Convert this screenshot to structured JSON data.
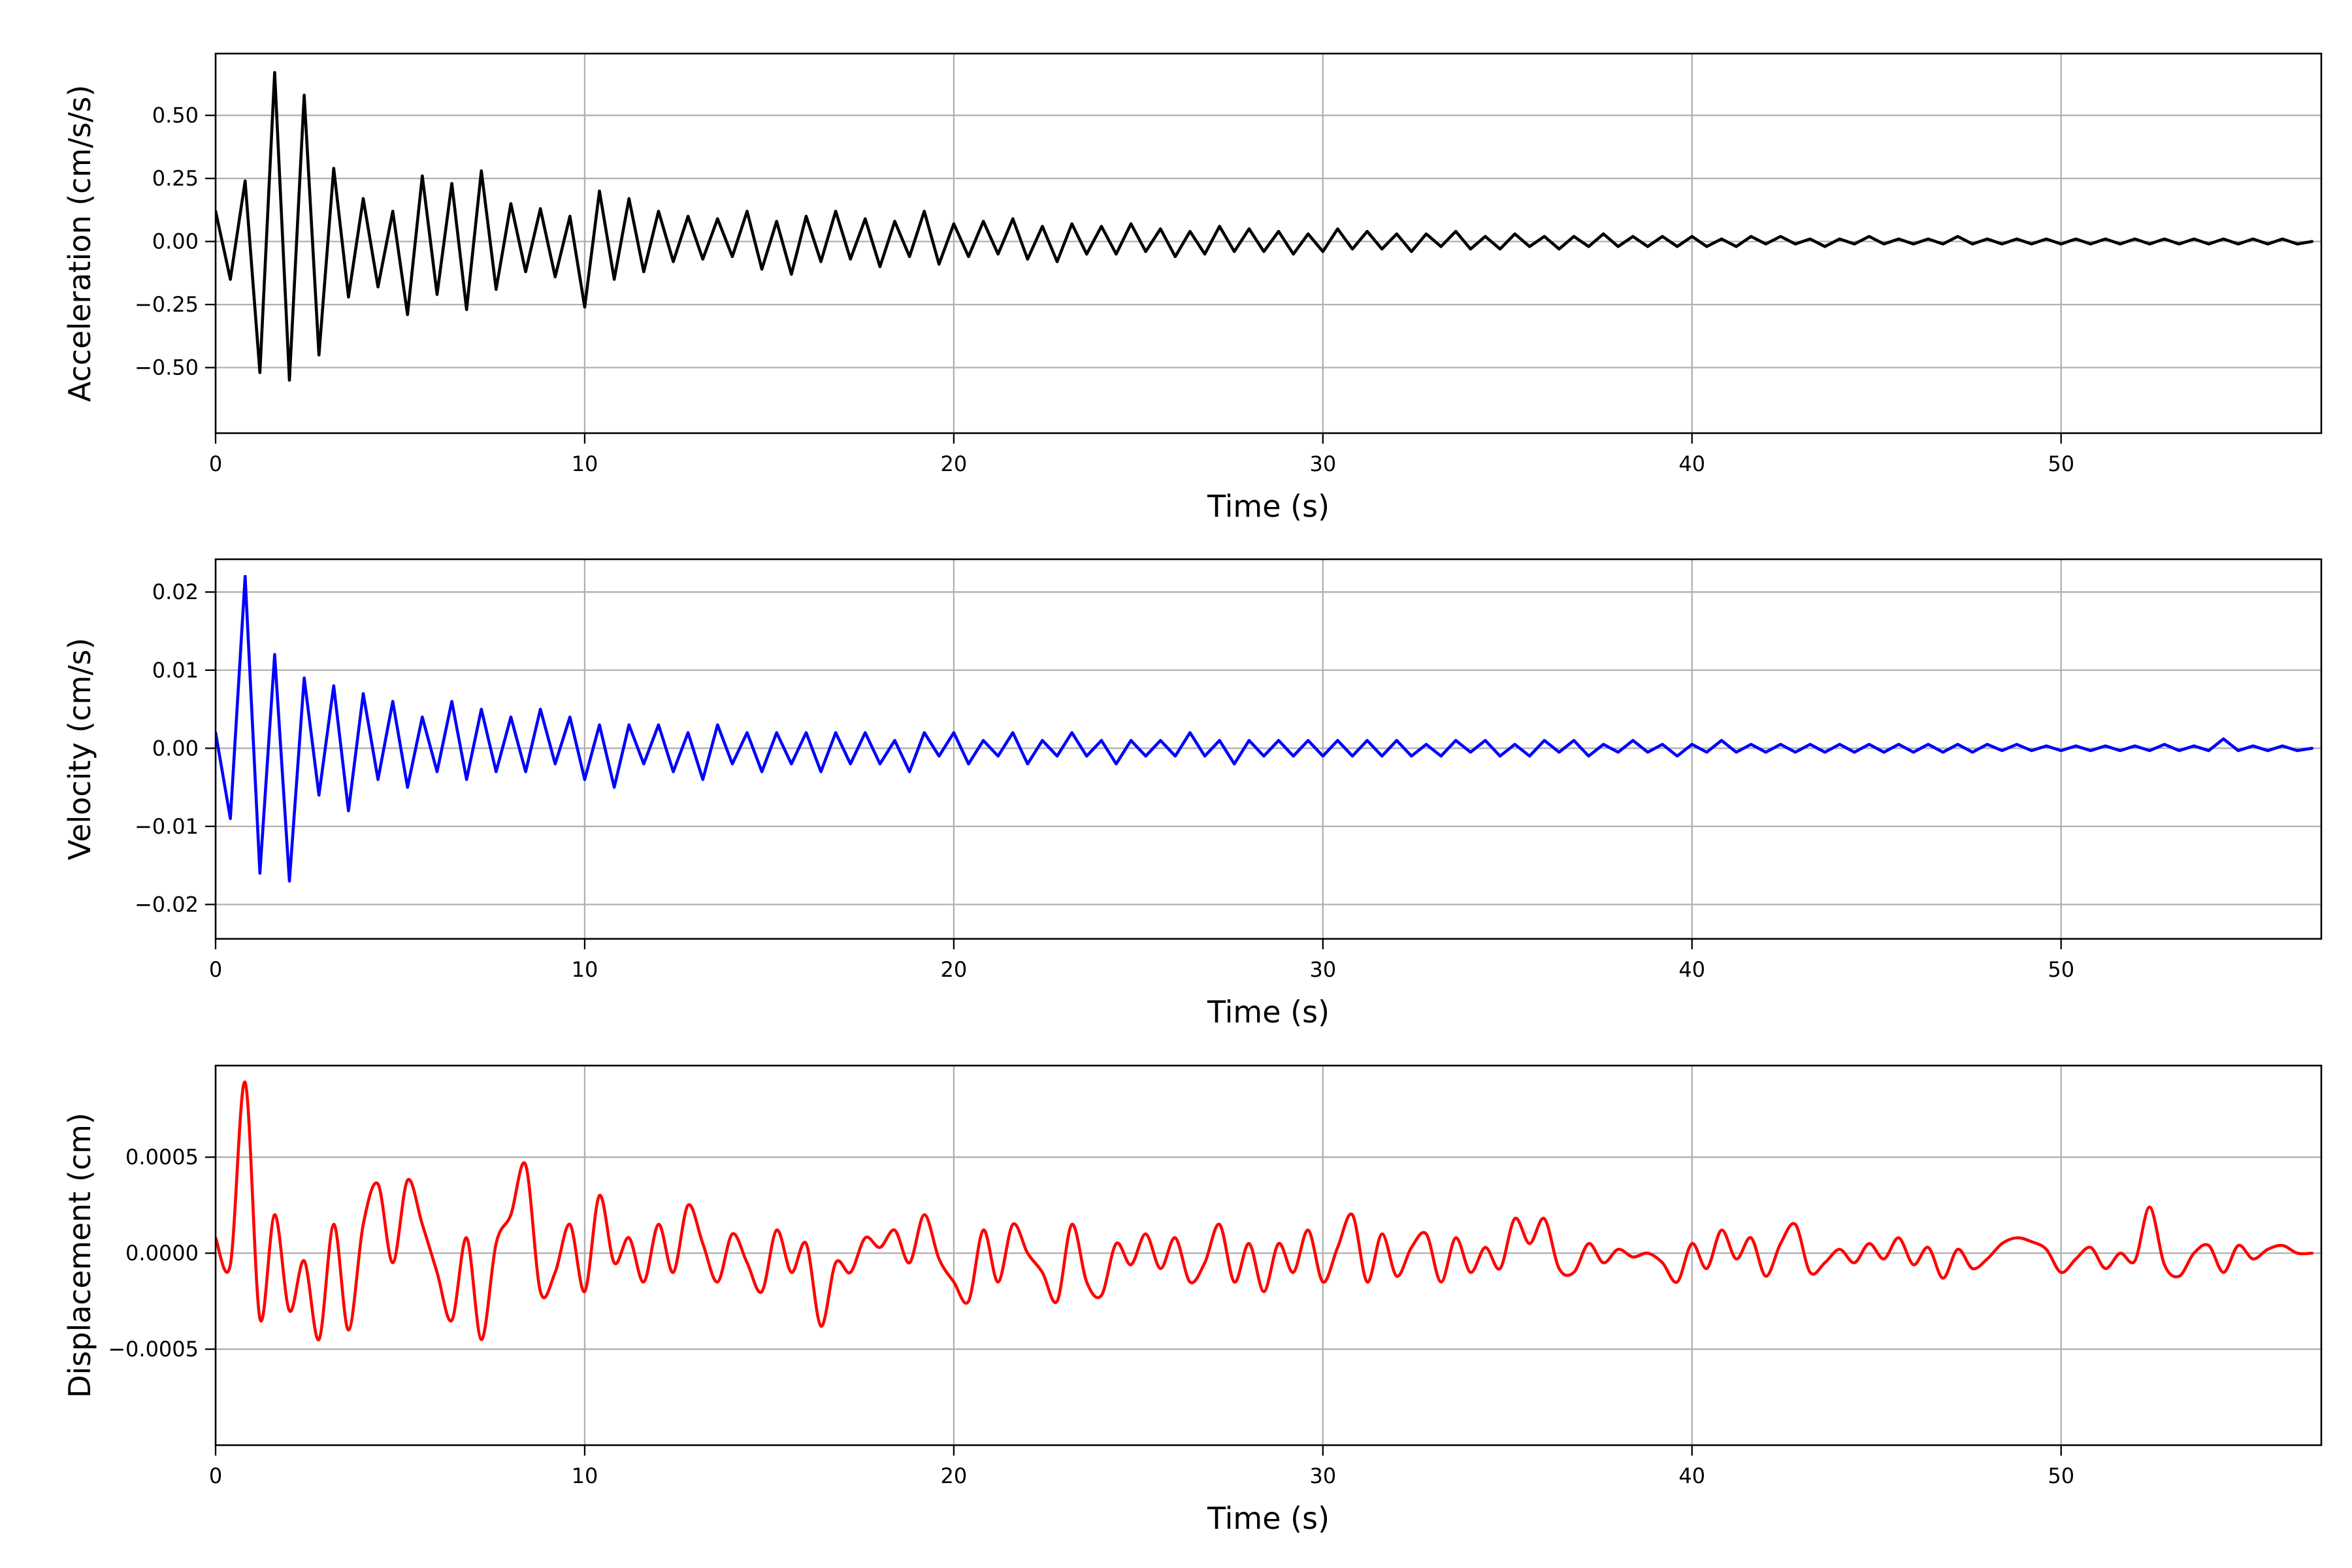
{
  "chart_data": [
    {
      "type": "line",
      "ylabel": "Acceleration (cm/s/s)",
      "xlabel": "Time (s)",
      "xlim": [
        0,
        57.05
      ],
      "ylim": [
        -0.76,
        0.745
      ],
      "grid": true,
      "color": "#000000",
      "xticks": [
        0,
        10,
        20,
        30,
        40,
        50
      ],
      "xtick_labels": [
        "0",
        "10",
        "20",
        "30",
        "40",
        "50"
      ],
      "yticks": [
        0.5,
        0.25,
        0,
        -0.25,
        -0.5
      ],
      "ytick_labels": [
        "0.50",
        "0.25",
        "0.00",
        "−0.25",
        "−0.50"
      ],
      "dt": 0.4,
      "values": [
        0.12,
        -0.15,
        0.24,
        -0.52,
        0.67,
        -0.55,
        0.58,
        -0.45,
        0.29,
        -0.22,
        0.17,
        -0.18,
        0.12,
        -0.29,
        0.26,
        -0.21,
        0.23,
        -0.27,
        0.28,
        -0.19,
        0.15,
        -0.12,
        0.13,
        -0.14,
        0.1,
        -0.26,
        0.2,
        -0.15,
        0.17,
        -0.12,
        0.12,
        -0.08,
        0.1,
        -0.07,
        0.09,
        -0.06,
        0.12,
        -0.11,
        0.08,
        -0.13,
        0.1,
        -0.08,
        0.12,
        -0.07,
        0.09,
        -0.1,
        0.08,
        -0.06,
        0.12,
        -0.09,
        0.07,
        -0.06,
        0.08,
        -0.05,
        0.09,
        -0.07,
        0.06,
        -0.08,
        0.07,
        -0.05,
        0.06,
        -0.05,
        0.07,
        -0.04,
        0.05,
        -0.06,
        0.04,
        -0.05,
        0.06,
        -0.04,
        0.05,
        -0.04,
        0.04,
        -0.05,
        0.03,
        -0.04,
        0.05,
        -0.03,
        0.04,
        -0.03,
        0.03,
        -0.04,
        0.03,
        -0.02,
        0.04,
        -0.03,
        0.02,
        -0.03,
        0.03,
        -0.02,
        0.02,
        -0.03,
        0.02,
        -0.02,
        0.03,
        -0.02,
        0.02,
        -0.02,
        0.02,
        -0.02,
        0.02,
        -0.02,
        0.01,
        -0.02,
        0.02,
        -0.01,
        0.02,
        -0.01,
        0.01,
        -0.02,
        0.01,
        -0.01,
        0.02,
        -0.01,
        0.01,
        -0.01,
        0.01,
        -0.01,
        0.02,
        -0.01,
        0.01,
        -0.01,
        0.01,
        -0.01,
        0.01,
        -0.01,
        0.01,
        -0.01,
        0.01,
        -0.01,
        0.01,
        -0.01,
        0.01,
        -0.01,
        0.01,
        -0.01,
        0.01,
        -0.01,
        0.01,
        -0.01,
        0.01,
        -0.01,
        0.0
      ]
    },
    {
      "type": "line",
      "ylabel": "Velocity (cm/s)",
      "xlabel": "Time (s)",
      "xlim": [
        0,
        57.05
      ],
      "ylim": [
        -0.0244,
        0.0242
      ],
      "grid": true,
      "color": "#0000ff",
      "xticks": [
        0,
        10,
        20,
        30,
        40,
        50
      ],
      "xtick_labels": [
        "0",
        "10",
        "20",
        "30",
        "40",
        "50"
      ],
      "yticks": [
        0.02,
        0.01,
        0,
        -0.01,
        -0.02
      ],
      "ytick_labels": [
        "0.02",
        "0.01",
        "0.00",
        "−0.01",
        "−0.02"
      ],
      "dt": 0.4,
      "values": [
        0.002,
        -0.009,
        0.022,
        -0.016,
        0.012,
        -0.017,
        0.009,
        -0.006,
        0.008,
        -0.008,
        0.007,
        -0.004,
        0.006,
        -0.005,
        0.004,
        -0.003,
        0.006,
        -0.004,
        0.005,
        -0.003,
        0.004,
        -0.003,
        0.005,
        -0.002,
        0.004,
        -0.004,
        0.003,
        -0.005,
        0.003,
        -0.002,
        0.003,
        -0.003,
        0.002,
        -0.004,
        0.003,
        -0.002,
        0.002,
        -0.003,
        0.002,
        -0.002,
        0.002,
        -0.003,
        0.002,
        -0.002,
        0.002,
        -0.002,
        0.001,
        -0.003,
        0.002,
        -0.001,
        0.002,
        -0.002,
        0.001,
        -0.001,
        0.002,
        -0.002,
        0.001,
        -0.001,
        0.002,
        -0.001,
        0.001,
        -0.002,
        0.001,
        -0.001,
        0.001,
        -0.001,
        0.002,
        -0.001,
        0.001,
        -0.002,
        0.001,
        -0.001,
        0.001,
        -0.001,
        0.001,
        -0.001,
        0.001,
        -0.001,
        0.001,
        -0.001,
        0.001,
        -0.001,
        0.0005,
        -0.001,
        0.001,
        -0.0005,
        0.001,
        -0.001,
        0.0005,
        -0.001,
        0.001,
        -0.0005,
        0.001,
        -0.001,
        0.0005,
        -0.0005,
        0.001,
        -0.0005,
        0.0005,
        -0.001,
        0.0005,
        -0.0005,
        0.001,
        -0.0005,
        0.0005,
        -0.0005,
        0.0005,
        -0.0005,
        0.0005,
        -0.0005,
        0.0005,
        -0.0005,
        0.0005,
        -0.0005,
        0.0005,
        -0.0005,
        0.0005,
        -0.0005,
        0.0005,
        -0.0005,
        0.0005,
        -0.0003,
        0.0005,
        -0.0003,
        0.0003,
        -0.0003,
        0.0003,
        -0.0003,
        0.0003,
        -0.0003,
        0.0003,
        -0.0003,
        0.0005,
        -0.0003,
        0.0003,
        -0.0003,
        0.0012,
        -0.0003,
        0.0003,
        -0.0003,
        0.0003,
        -0.0003,
        0.0
      ]
    },
    {
      "type": "line",
      "ylabel": "Displacement (cm)",
      "xlabel": "Time (s)",
      "xlim": [
        0,
        57.05
      ],
      "ylim": [
        -0.001,
        0.000977
      ],
      "grid": true,
      "color": "#ff0000",
      "xticks": [
        0,
        10,
        20,
        30,
        40,
        50
      ],
      "xtick_labels": [
        "0",
        "10",
        "20",
        "30",
        "40",
        "50"
      ],
      "yticks": [
        0.0005,
        0,
        -0.0005
      ],
      "ytick_labels": [
        "0.0005",
        "0.0000",
        "−0.0005"
      ],
      "dt": 0.4,
      "values": [
        8e-05,
        -6e-05,
        0.00089,
        -0.00034,
        0.0002,
        -0.0003,
        -4e-05,
        -0.00045,
        0.00015,
        -0.0004,
        0.00015,
        0.00036,
        -5e-05,
        0.00038,
        0.00015,
        -0.0001,
        -0.00035,
        8e-05,
        -0.00045,
        5e-05,
        0.0002,
        0.00046,
        -0.0002,
        -0.0001,
        0.00015,
        -0.0002,
        0.0003,
        -5e-05,
        8e-05,
        -0.00015,
        0.00015,
        -0.0001,
        0.00025,
        5e-05,
        -0.00015,
        0.0001,
        -5e-05,
        -0.0002,
        0.00012,
        -0.0001,
        5e-05,
        -0.00038,
        -5e-05,
        -0.0001,
        8e-05,
        3e-05,
        0.00012,
        -5e-05,
        0.0002,
        -3e-05,
        -0.00015,
        -0.00025,
        0.00012,
        -0.00015,
        0.00015,
        0.0,
        -0.0001,
        -0.00025,
        0.00015,
        -0.00015,
        -0.00022,
        5e-05,
        -6e-05,
        0.0001,
        -8e-05,
        8e-05,
        -0.00015,
        -5e-05,
        0.00015,
        -0.00015,
        5e-05,
        -0.0002,
        5e-05,
        -0.0001,
        0.00012,
        -0.00015,
        3e-05,
        0.0002,
        -0.00015,
        0.0001,
        -0.00012,
        3e-05,
        0.0001,
        -0.00015,
        8e-05,
        -0.0001,
        3e-05,
        -8e-05,
        0.00018,
        5e-05,
        0.00018,
        -8e-05,
        -0.0001,
        5e-05,
        -5e-05,
        2e-05,
        -2e-05,
        0.0,
        -5e-05,
        -0.00015,
        5e-05,
        -8e-05,
        0.00012,
        -3e-05,
        8e-05,
        -0.00012,
        5e-05,
        0.00015,
        -0.0001,
        -5e-05,
        2e-05,
        -5e-05,
        5e-05,
        -3e-05,
        8e-05,
        -6e-05,
        3e-05,
        -0.00013,
        2e-05,
        -8e-05,
        -3e-05,
        5e-05,
        8e-05,
        6e-05,
        2e-05,
        -0.0001,
        -3e-05,
        3e-05,
        -8e-05,
        0.0,
        -4e-05,
        0.00024,
        -6e-05,
        -0.00012,
        0.0,
        4e-05,
        -0.0001,
        4e-05,
        -3e-05,
        2e-05,
        4e-05,
        0.0,
        0.0
      ]
    }
  ]
}
